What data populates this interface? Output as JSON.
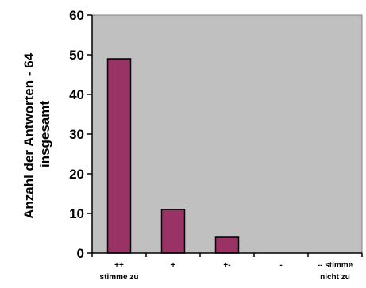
{
  "chart_data": {
    "type": "bar",
    "categories": [
      [
        "++",
        "stimme zu"
      ],
      [
        "+"
      ],
      [
        "+-"
      ],
      [
        "-"
      ],
      [
        "-- stimme",
        "nicht zu"
      ]
    ],
    "values": [
      49,
      11,
      4,
      0,
      0
    ],
    "ylabel_lines": [
      "Anzahl der Antworten - 64",
      "insgesamt"
    ],
    "ylim": [
      0,
      60
    ],
    "yticks": [
      0,
      10,
      20,
      30,
      40,
      50,
      60
    ],
    "grid": false,
    "legend": "none",
    "colors": {
      "bar": "#993366",
      "plot_background": "#c0c0c0",
      "axis": "#000000"
    }
  }
}
